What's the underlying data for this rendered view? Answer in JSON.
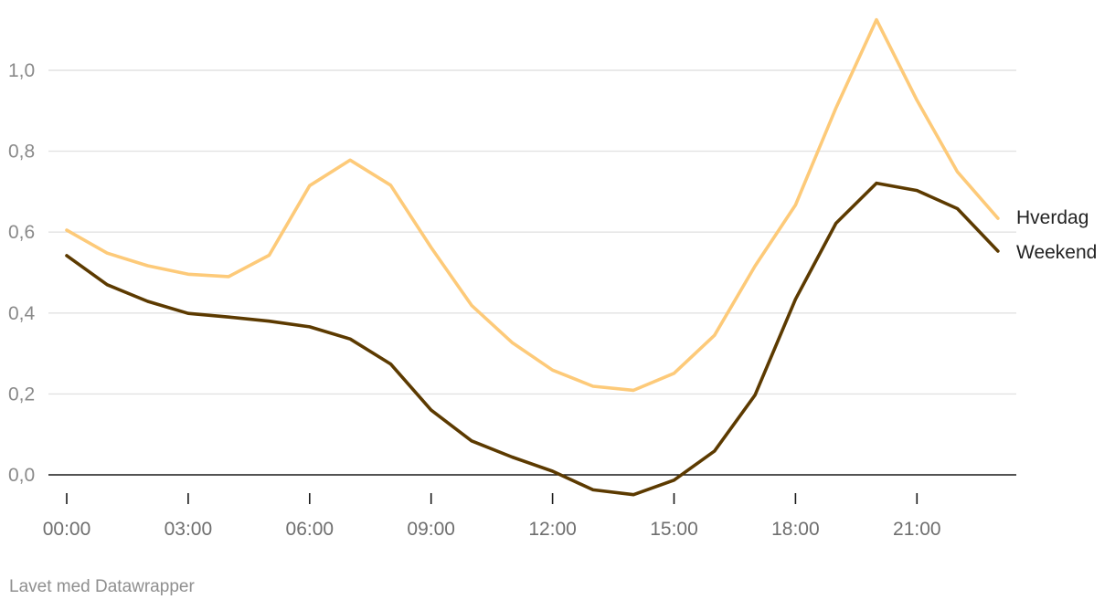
{
  "chart_data": {
    "type": "line",
    "x": [
      "00:00",
      "01:00",
      "02:00",
      "03:00",
      "04:00",
      "05:00",
      "06:00",
      "07:00",
      "08:00",
      "09:00",
      "10:00",
      "11:00",
      "12:00",
      "13:00",
      "14:00",
      "15:00",
      "16:00",
      "17:00",
      "18:00",
      "19:00",
      "20:00",
      "21:00",
      "22:00",
      "23:00"
    ],
    "x_tick_labels": [
      "00:00",
      "03:00",
      "06:00",
      "09:00",
      "12:00",
      "15:00",
      "18:00",
      "21:00"
    ],
    "y_tick_values": [
      0.0,
      0.2,
      0.4,
      0.6,
      0.8,
      1.0
    ],
    "y_tick_labels": [
      "0,0",
      "0,2",
      "0,4",
      "0,6",
      "0,8",
      "1,0"
    ],
    "ylim": [
      -0.06,
      1.14
    ],
    "grid": true,
    "legend": "direct labels at line ends (right)",
    "series": [
      {
        "name": "Hverdag",
        "color": "#fdca79",
        "values": [
          0.605,
          0.548,
          0.517,
          0.496,
          0.49,
          0.543,
          0.715,
          0.778,
          0.716,
          0.562,
          0.419,
          0.327,
          0.259,
          0.219,
          0.209,
          0.251,
          0.345,
          0.516,
          0.667,
          0.907,
          1.125,
          0.926,
          0.749,
          0.634
        ]
      },
      {
        "name": "Weekend",
        "color": "#5c3a00",
        "values": [
          0.542,
          0.47,
          0.429,
          0.399,
          0.39,
          0.38,
          0.366,
          0.336,
          0.274,
          0.16,
          0.084,
          0.044,
          0.009,
          -0.037,
          -0.049,
          -0.013,
          0.059,
          0.197,
          0.434,
          0.622,
          0.721,
          0.703,
          0.658,
          0.553
        ]
      }
    ]
  },
  "footer": {
    "credit": "Lavet med Datawrapper"
  }
}
